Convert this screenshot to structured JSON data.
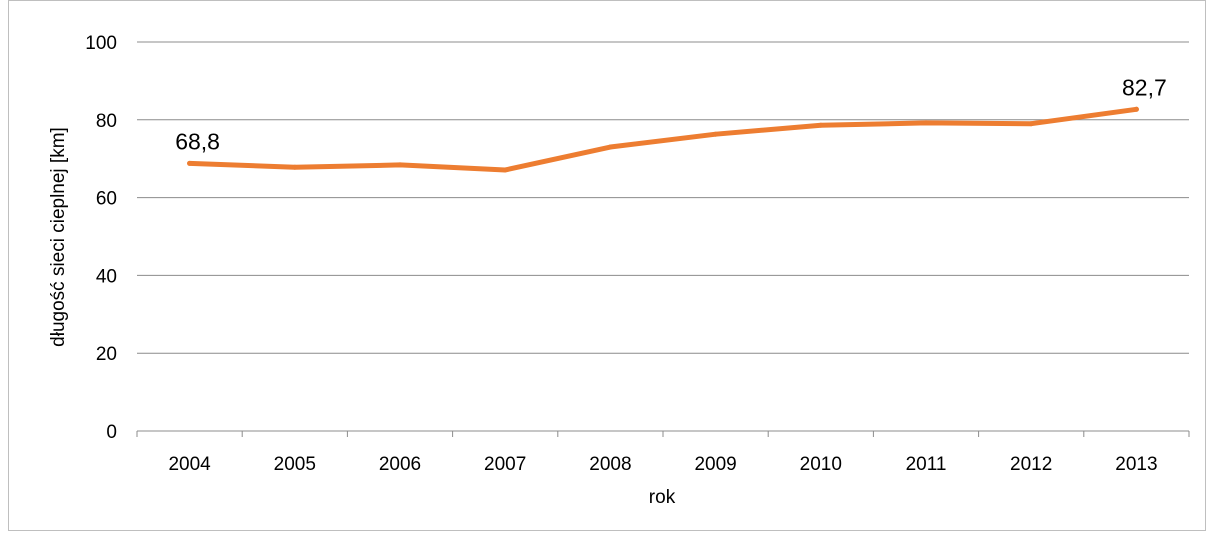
{
  "chart_data": {
    "type": "line",
    "title": "",
    "xlabel": "rok",
    "ylabel": "długość sieci cieplnej [km]",
    "categories": [
      "2004",
      "2005",
      "2006",
      "2007",
      "2008",
      "2009",
      "2010",
      "2011",
      "2012",
      "2013"
    ],
    "series": [
      {
        "values": [
          68.8,
          67.8,
          68.4,
          67.1,
          73.0,
          76.3,
          78.6,
          79.2,
          79.0,
          82.7
        ],
        "color": "#ED7D31"
      }
    ],
    "ylim": [
      0,
      100
    ],
    "yticks": [
      "0",
      "20",
      "40",
      "60",
      "80",
      "100"
    ],
    "data_labels": [
      {
        "index": 0,
        "text": "68,8"
      },
      {
        "index": 9,
        "text": "82,7"
      }
    ],
    "grid": true,
    "legend": "none"
  }
}
